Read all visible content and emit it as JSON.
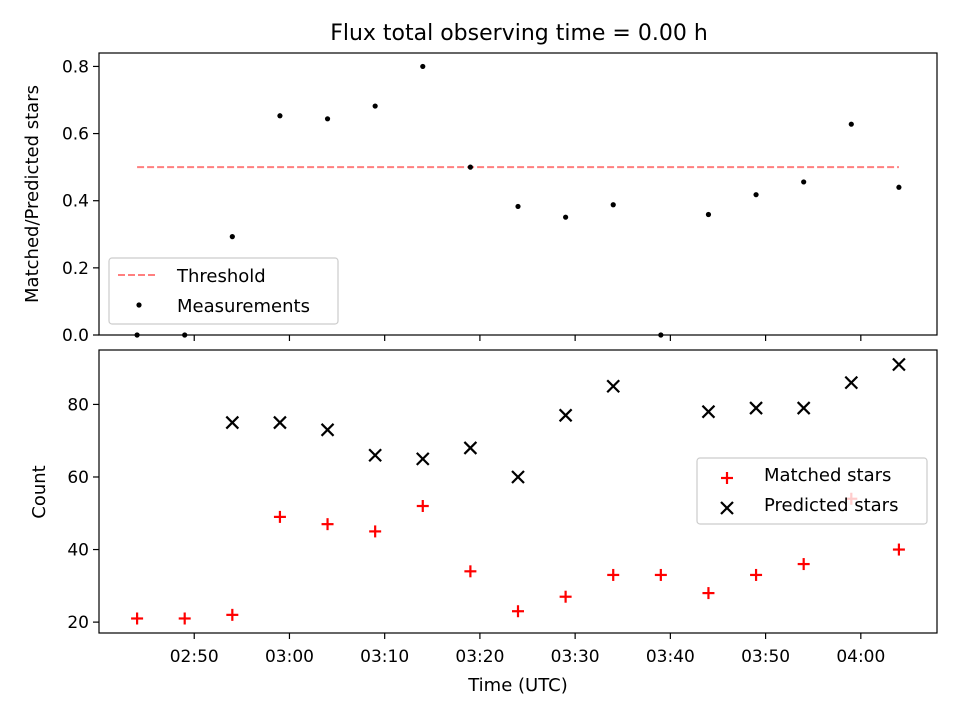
{
  "chart_data": [
    {
      "type": "scatter",
      "title": "Flux total observing time = 0.00 h",
      "xlabel": "",
      "ylabel": "Matched/Predicted stars",
      "ylim": [
        0,
        0.84
      ],
      "yticks": [
        0.0,
        0.2,
        0.4,
        0.6,
        0.8
      ],
      "ytick_labels": [
        "0.0",
        "0.2",
        "0.4",
        "0.6",
        "0.8"
      ],
      "legend_position": "lower-left",
      "threshold": {
        "name": "Threshold",
        "value": 0.5,
        "x_range": [
          "02:44",
          "04:04"
        ],
        "color": "#ff7f7f",
        "style": "dashed"
      },
      "series": [
        {
          "name": "Measurements",
          "marker": "dot",
          "color": "#000000",
          "points": [
            [
              "02:44",
              0.0
            ],
            [
              "02:49",
              0.0
            ],
            [
              "02:54",
              0.293
            ],
            [
              "02:59",
              0.653
            ],
            [
              "03:04",
              0.644
            ],
            [
              "03:09",
              0.682
            ],
            [
              "03:14",
              0.8
            ],
            [
              "03:19",
              0.5
            ],
            [
              "03:24",
              0.383
            ],
            [
              "03:29",
              0.351
            ],
            [
              "03:34",
              0.388
            ],
            [
              "03:39",
              0.0
            ],
            [
              "03:44",
              0.359
            ],
            [
              "03:49",
              0.418
            ],
            [
              "03:54",
              0.456
            ],
            [
              "03:59",
              0.628
            ],
            [
              "04:04",
              0.44
            ]
          ]
        }
      ]
    },
    {
      "type": "scatter",
      "title": "",
      "xlabel": "Time (UTC)",
      "ylabel": "Count",
      "ylim": [
        17,
        95
      ],
      "yticks": [
        20,
        40,
        60,
        80
      ],
      "ytick_labels": [
        "20",
        "40",
        "60",
        "80"
      ],
      "xlim": [
        "02:40",
        "04:08"
      ],
      "xticks": [
        "02:50",
        "03:00",
        "03:10",
        "03:20",
        "03:30",
        "03:40",
        "03:50",
        "04:00"
      ],
      "legend_position": "center-right",
      "series": [
        {
          "name": "Matched stars",
          "marker": "plus",
          "color": "#ff0000",
          "points": [
            [
              "02:44",
              21
            ],
            [
              "02:49",
              21
            ],
            [
              "02:54",
              22
            ],
            [
              "02:59",
              49
            ],
            [
              "03:04",
              47
            ],
            [
              "03:09",
              45
            ],
            [
              "03:14",
              52
            ],
            [
              "03:19",
              34
            ],
            [
              "03:24",
              23
            ],
            [
              "03:29",
              27
            ],
            [
              "03:34",
              33
            ],
            [
              "03:39",
              33
            ],
            [
              "03:44",
              28
            ],
            [
              "03:49",
              33
            ],
            [
              "03:54",
              36
            ],
            [
              "03:59",
              54
            ],
            [
              "04:04",
              40
            ]
          ]
        },
        {
          "name": "Predicted stars",
          "marker": "x",
          "color": "#000000",
          "points": [
            [
              "02:54",
              75
            ],
            [
              "02:59",
              75
            ],
            [
              "03:04",
              73
            ],
            [
              "03:09",
              66
            ],
            [
              "03:14",
              65
            ],
            [
              "03:19",
              68
            ],
            [
              "03:24",
              60
            ],
            [
              "03:29",
              77
            ],
            [
              "03:34",
              85
            ],
            [
              "03:44",
              78
            ],
            [
              "03:49",
              79
            ],
            [
              "03:54",
              79
            ],
            [
              "03:59",
              86
            ],
            [
              "04:04",
              91
            ]
          ]
        }
      ]
    }
  ]
}
